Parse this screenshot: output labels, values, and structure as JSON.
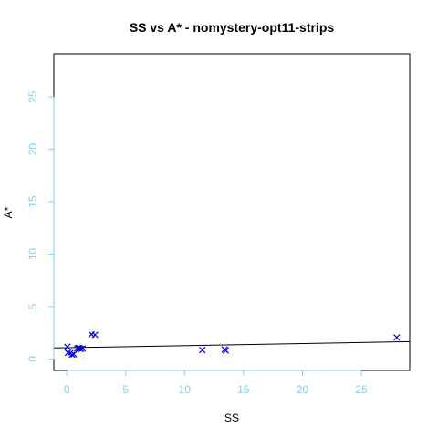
{
  "chart_data": {
    "type": "scatter",
    "title": "SS vs A* - nomystery-opt11-strips",
    "xlabel": "SS",
    "ylabel": "A*",
    "xlim": [
      -1.1,
      29.1
    ],
    "ylim": [
      -1.1,
      29.1
    ],
    "x_ticks": [
      0,
      5,
      10,
      15,
      20,
      25
    ],
    "y_ticks": [
      0,
      5,
      10,
      15,
      20,
      25
    ],
    "grid": false,
    "legend": "none",
    "colors": {
      "points": "#0000cd",
      "axis": "#87ceeb",
      "line": "#000000"
    },
    "marker": "x",
    "points": [
      {
        "x": 0.05,
        "y": 1.15
      },
      {
        "x": 0.1,
        "y": 0.6
      },
      {
        "x": 0.3,
        "y": 0.55
      },
      {
        "x": 0.45,
        "y": 0.4
      },
      {
        "x": 0.6,
        "y": 0.45
      },
      {
        "x": 0.9,
        "y": 1.0
      },
      {
        "x": 1.0,
        "y": 1.05
      },
      {
        "x": 1.1,
        "y": 1.0
      },
      {
        "x": 1.2,
        "y": 0.95
      },
      {
        "x": 1.35,
        "y": 1.0
      },
      {
        "x": 2.1,
        "y": 2.35
      },
      {
        "x": 2.4,
        "y": 2.3
      },
      {
        "x": 11.5,
        "y": 0.85
      },
      {
        "x": 13.4,
        "y": 0.9
      },
      {
        "x": 13.5,
        "y": 0.8
      },
      {
        "x": 28.0,
        "y": 2.05
      }
    ],
    "fit_line": {
      "x": [
        -1.1,
        29.1
      ],
      "y": [
        1.05,
        1.65
      ]
    }
  }
}
